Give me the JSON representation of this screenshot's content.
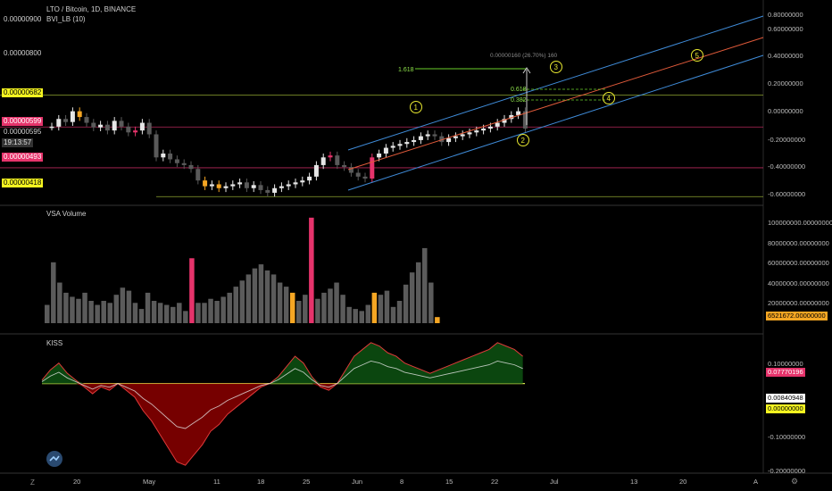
{
  "chart_header": {
    "symbol": "LTO / Bitcoin, 1D, BINANCE",
    "indicator": "BVI_LB (10)"
  },
  "panes": {
    "volume_title": "VSA Volume",
    "kiss_title": "KISS"
  },
  "left_labels": [
    {
      "text": "0.00000900",
      "style": "plain"
    },
    {
      "text": "0.00000800",
      "style": "plain"
    },
    {
      "text": "0.00000682",
      "style": "yellow"
    },
    {
      "text": "0.00000599",
      "style": "pink"
    },
    {
      "text": "0.00000595",
      "style": "plain"
    },
    {
      "text": "19:13:57",
      "style": "dark"
    },
    {
      "text": "0.00000493",
      "style": "pink"
    },
    {
      "text": "0.00000418",
      "style": "yellow"
    }
  ],
  "right_price_axis": [
    "0.80000000",
    "0.60000000",
    "0.40000000",
    "0.20000000",
    "0.00000000",
    "-0.20000000",
    "-0.40000000",
    "-0.60000000"
  ],
  "right_volume_axis": [
    "100000000.00000000",
    "80000000.00000000",
    "60000000.00000000",
    "40000000.00000000",
    "20000000.00000000"
  ],
  "volume_last": "6521672.00000000",
  "right_kiss_axis": [
    "0.10000000",
    "-0.10000000",
    "-0.20000000"
  ],
  "kiss_tags": {
    "red": "0.07770196",
    "white": "0.00840948",
    "yellow": "0.00000000"
  },
  "x_axis": [
    "20",
    "May",
    "11",
    "18",
    "25",
    "Jun",
    "8",
    "15",
    "22",
    "Jul",
    "13",
    "20",
    "A"
  ],
  "corner_labels": {
    "left": "Z",
    "right": "⚙"
  },
  "annotations": {
    "fib_1618": "1.618",
    "fib_0618": "0.618",
    "fib_0382": "0.382",
    "measure": "0.00000160 (26.70%) 160",
    "wave_labels": [
      "1",
      "2",
      "3",
      "4",
      "5"
    ]
  },
  "colors": {
    "up": "#e6e6e6",
    "down": "#5a5a5a",
    "pink": "#e6336b",
    "yellow": "#f5d020",
    "orange": "#f5a623",
    "channel_blue": "#3f8bd8",
    "channel_red": "#e05a3a",
    "kiss_green": "#0c4a10",
    "kiss_red": "#8b0000"
  },
  "chart_data": [
    {
      "type": "line",
      "title": "LTO / Bitcoin, 1D, BINANCE",
      "description_units": "price BTC",
      "series": [
        {
          "name": "LTO / Bitcoin",
          "values": [
            6e-06,
            6.2e-06,
            6.12e-06,
            6.4e-06,
            6.25e-06,
            6.1e-06,
            5.98e-06,
            6.05e-06,
            5.9e-06,
            6.15e-06,
            6e-06,
            5.85e-06,
            5.9e-06,
            6.1e-06,
            5.8e-06,
            5.2e-06,
            5.3e-06,
            5.15e-06,
            5.05e-06,
            5e-06,
            4.9e-06,
            4.6e-06,
            4.45e-06,
            4.5e-06,
            4.4e-06,
            4.45e-06,
            4.5e-06,
            4.55e-06,
            4.4e-06,
            4.48e-06,
            4.35e-06,
            4.28e-06,
            4.4e-06,
            4.45e-06,
            4.5e-06,
            4.55e-06,
            4.6e-06,
            4.7e-06,
            5e-06,
            5.2e-06,
            5.25e-06,
            5e-06,
            4.95e-06,
            4.8e-06,
            4.7e-06,
            4.65e-06,
            5.2e-06,
            5.3e-06,
            5.45e-06,
            5.5e-06,
            5.55e-06,
            5.6e-06,
            5.65e-06,
            5.75e-06,
            5.8e-06,
            5.75e-06,
            5.6e-06,
            5.7e-06,
            5.75e-06,
            5.8e-06,
            5.85e-06,
            5.9e-06,
            5.95e-06,
            6e-06,
            6.1e-06,
            6.2e-06,
            6.3e-06,
            6.4e-06,
            5.95e-06
          ]
        }
      ]
    },
    {
      "type": "bar",
      "title": "VSA Volume",
      "values_millions": [
        18,
        60,
        40,
        30,
        26,
        24,
        30,
        22,
        18,
        22,
        20,
        28,
        35,
        32,
        20,
        14,
        30,
        22,
        20,
        18,
        16,
        20,
        12,
        64,
        20,
        20,
        24,
        22,
        26,
        30,
        36,
        42,
        48,
        54,
        58,
        52,
        48,
        40,
        36,
        30,
        22,
        28,
        104,
        24,
        30,
        34,
        40,
        28,
        16,
        14,
        12,
        18,
        30,
        28,
        32,
        16,
        22,
        38,
        50,
        60,
        74,
        40,
        6
      ],
      "ylim": [
        0,
        110000000
      ]
    },
    {
      "type": "area",
      "title": "KISS",
      "series": [
        {
          "name": "KISS",
          "values": [
            0.01,
            0.04,
            0.06,
            0.03,
            0.01,
            -0.01,
            -0.03,
            -0.01,
            -0.02,
            0.0,
            -0.02,
            -0.04,
            -0.08,
            -0.11,
            -0.15,
            -0.19,
            -0.23,
            -0.24,
            -0.21,
            -0.18,
            -0.14,
            -0.12,
            -0.09,
            -0.07,
            -0.05,
            -0.03,
            -0.01,
            0.0,
            0.02,
            0.05,
            0.08,
            0.06,
            0.02,
            -0.01,
            -0.02,
            0.0,
            0.04,
            0.08,
            0.1,
            0.12,
            0.11,
            0.09,
            0.08,
            0.06,
            0.05,
            0.04,
            0.03,
            0.04,
            0.05,
            0.06,
            0.07,
            0.08,
            0.09,
            0.1,
            0.12,
            0.11,
            0.1,
            0.08
          ]
        }
      ],
      "ylim": [
        -0.22,
        0.12
      ]
    }
  ]
}
